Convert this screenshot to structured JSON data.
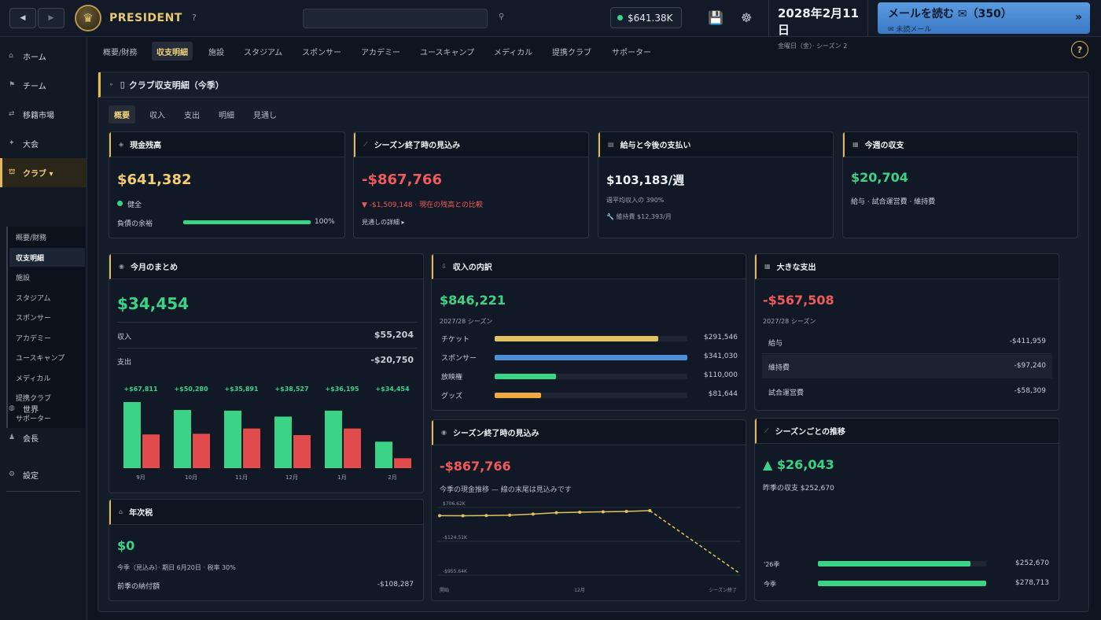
{
  "topbar": {
    "back_label": "◀",
    "forward_label": "▶",
    "brand": "PRESIDENT",
    "help": "?",
    "cash": "$641.38K",
    "date": "2028年2月11日",
    "date_sub": "金曜日（金）· シーズン 2",
    "mail_label": "メールを読む ✉（350）",
    "mail_sub": "✉ 未読メール",
    "mail_arrow": "»"
  },
  "sidebar": {
    "items": [
      {
        "icon": "⌂",
        "label": "ホーム"
      },
      {
        "icon": "⚑",
        "label": "チーム"
      },
      {
        "icon": "⇄",
        "label": "移籍市場"
      },
      {
        "icon": "✦",
        "label": "大会"
      },
      {
        "icon": "⛫",
        "label": "クラブ ▾"
      },
      {
        "icon": "◍",
        "label": "世界"
      },
      {
        "icon": "♟",
        "label": "会長"
      },
      {
        "icon": "⚙",
        "label": "設定"
      }
    ],
    "club_sub": [
      "概要/財務",
      "収支明細",
      "施設",
      "スタジアム",
      "スポンサー",
      "アカデミー",
      "ユースキャンプ",
      "メディカル",
      "提携クラブ",
      "サポーター"
    ]
  },
  "tabs": [
    "概要/財務",
    "収支明細",
    "施設",
    "スタジアム",
    "スポンサー",
    "アカデミー",
    "ユースキャンプ",
    "メディカル",
    "提携クラブ",
    "サポーター"
  ],
  "help_right": "?",
  "main": {
    "title": "クラブ収支明細（今季）",
    "subtabs": [
      "概要",
      "収入",
      "支出",
      "明細",
      "見通し"
    ]
  },
  "cash_card": {
    "title": "現金残高",
    "value": "$641,382",
    "status": "健全",
    "debt_label": "負債の余裕",
    "debt_pct": "100%",
    "debt_fraction": 1.0
  },
  "season_end_card": {
    "title": "シーズン終了時の見込み",
    "value": "-$867,766",
    "compare": "▼ -$1,509,148 · 現在の残高との比較",
    "detail": "見通しの詳細 ▸"
  },
  "wage_card": {
    "title": "給与と今後の支払い",
    "value": "$103,183/週",
    "ratio": "週平均収入の 390%",
    "maintenance": "🔧 維持費 $12,393/月"
  },
  "week_card": {
    "title": "今週の収支",
    "value": "$20,704",
    "desc": "給与 · 試合運営費 · 維持費"
  },
  "month_card": {
    "title": "今月のまとめ",
    "value": "$34,454",
    "income_label": "収入",
    "income": "$55,204",
    "expense_label": "支出",
    "expense": "-$20,750"
  },
  "chart_data": {
    "type": "bar",
    "categories": [
      "9月",
      "10月",
      "11月",
      "12月",
      "1月",
      "2月"
    ],
    "labels": [
      "+$67,811",
      "+$50,280",
      "+$35,891",
      "+$38,527",
      "+$36,195",
      "+$34,454"
    ],
    "series": [
      {
        "values": [
          100,
          88,
          87,
          78,
          87,
          40
        ]
      },
      {
        "values": [
          51,
          52,
          60,
          50,
          60,
          15
        ]
      }
    ],
    "colors": [
      "#3bd487",
      "#e24b4b"
    ]
  },
  "tax_card": {
    "title": "年次税",
    "value": "$0",
    "desc": "今季（見込み）· 期日 6月20日 · 税率 30%",
    "prev_label": "前季の納付額",
    "prev_value": "-$108,287"
  },
  "income_card": {
    "title": "収入の内訳",
    "value": "$846,221",
    "season": "2027/28 シーズン",
    "items": [
      {
        "label": "チケット",
        "value": "$291,546",
        "fraction": 0.85,
        "color": "#e2c160"
      },
      {
        "label": "スポンサー",
        "value": "$341,030",
        "fraction": 1.0,
        "color": "#4f8fd6"
      },
      {
        "label": "放映権",
        "value": "$110,000",
        "fraction": 0.32,
        "color": "#3bd487"
      },
      {
        "label": "グッズ",
        "value": "$81,644",
        "fraction": 0.24,
        "color": "#f0a940"
      }
    ]
  },
  "expense_card": {
    "title": "大きな支出",
    "value": "-$567,508",
    "season": "2027/28 シーズン",
    "items": [
      {
        "label": "給与",
        "value": "-$411,959"
      },
      {
        "label": "維持費",
        "value": "-$97,240"
      },
      {
        "label": "試合運営費",
        "value": "-$58,309"
      }
    ]
  },
  "forecast_card": {
    "title": "シーズン終了時の見込み",
    "value": "-$867,766",
    "desc": "今季の現金推移 — 線の末尾は見込みです",
    "y_labels": [
      "$706.62K",
      "-$124.51K",
      "-$955.64K"
    ],
    "x_labels": [
      "開始",
      "12月",
      "シーズン終了"
    ],
    "actual": [
      0.25,
      0.2,
      0.3,
      0.5,
      1.1,
      1.8,
      2.1,
      2.3,
      2.5,
      2.9
    ],
    "projected_end": -9.6
  },
  "trend_card": {
    "title": "シーズンごとの推移",
    "value": "▲ $26,043",
    "desc": "昨季の収支 $252,670",
    "items": [
      {
        "label": "'26季",
        "value": "$252,670",
        "fraction": 0.906
      },
      {
        "label": "今季",
        "value": "$278,713",
        "fraction": 1.0
      }
    ]
  }
}
